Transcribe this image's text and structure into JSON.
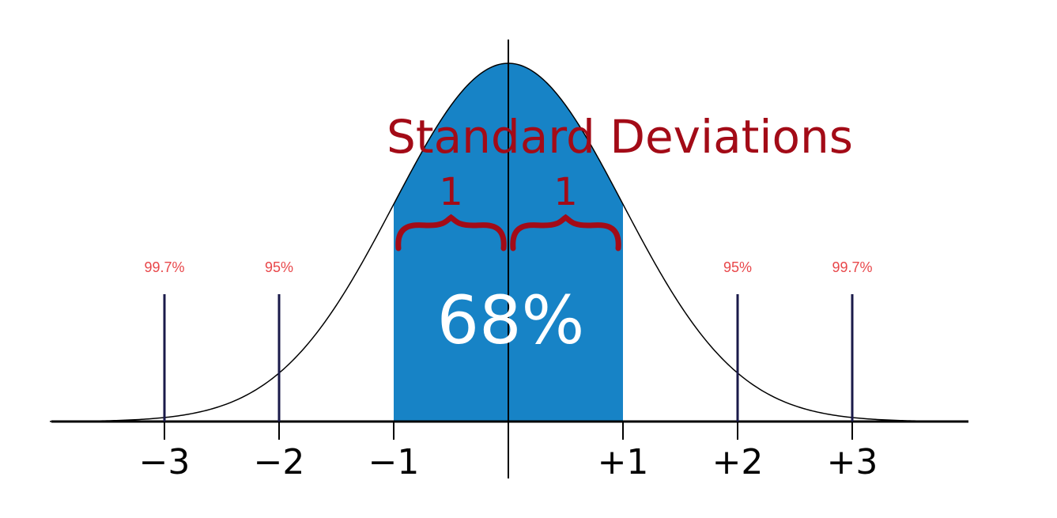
{
  "title": "Standard Deviations",
  "sd_ticks": [
    {
      "value": -3,
      "label": "−3"
    },
    {
      "value": -2,
      "label": "−2"
    },
    {
      "value": -1,
      "label": "−1"
    },
    {
      "value": 1,
      "label": "+1"
    },
    {
      "value": 2,
      "label": "+2"
    },
    {
      "value": 3,
      "label": "+3"
    }
  ],
  "range_labels": [
    {
      "value": -3,
      "label": "99.7%"
    },
    {
      "value": -2,
      "label": "95%"
    },
    {
      "value": 2,
      "label": "95%"
    },
    {
      "value": 3,
      "label": "99.7%"
    }
  ],
  "unit_labels": [
    {
      "from": -1,
      "to": 0,
      "label": "1"
    },
    {
      "from": 0,
      "to": 1,
      "label": "1"
    }
  ],
  "shaded_region": {
    "from": -1,
    "to": 1,
    "label": "68%"
  },
  "colors": {
    "shaded": "#1783c6",
    "title": "#a30b17",
    "percent_labels": "#e8474a",
    "sd_lines": "#1a1a4a",
    "curve": "#000000",
    "axis": "#000000",
    "center_text": "#ffffff"
  }
}
